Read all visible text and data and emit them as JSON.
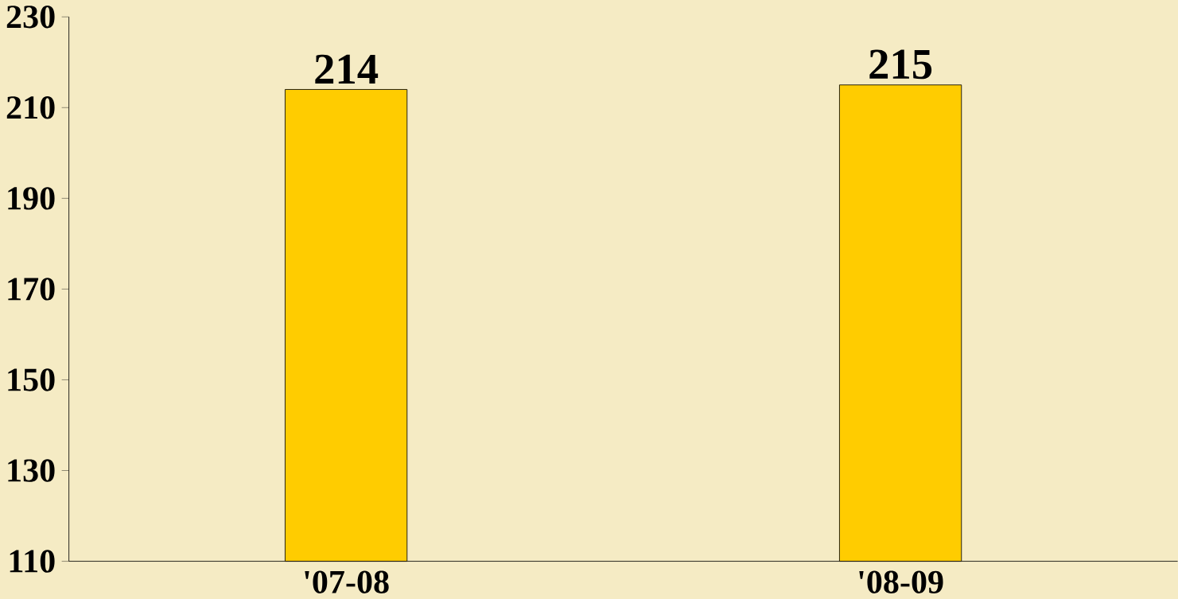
{
  "chart_data": {
    "type": "bar",
    "categories": [
      "'07-08",
      "'08-09"
    ],
    "values": [
      214,
      215
    ],
    "value_labels": [
      "214",
      "215"
    ],
    "color": "#ffcc00",
    "ylim": [
      110,
      230
    ],
    "yticks": [
      110,
      130,
      150,
      170,
      190,
      210,
      230
    ]
  }
}
